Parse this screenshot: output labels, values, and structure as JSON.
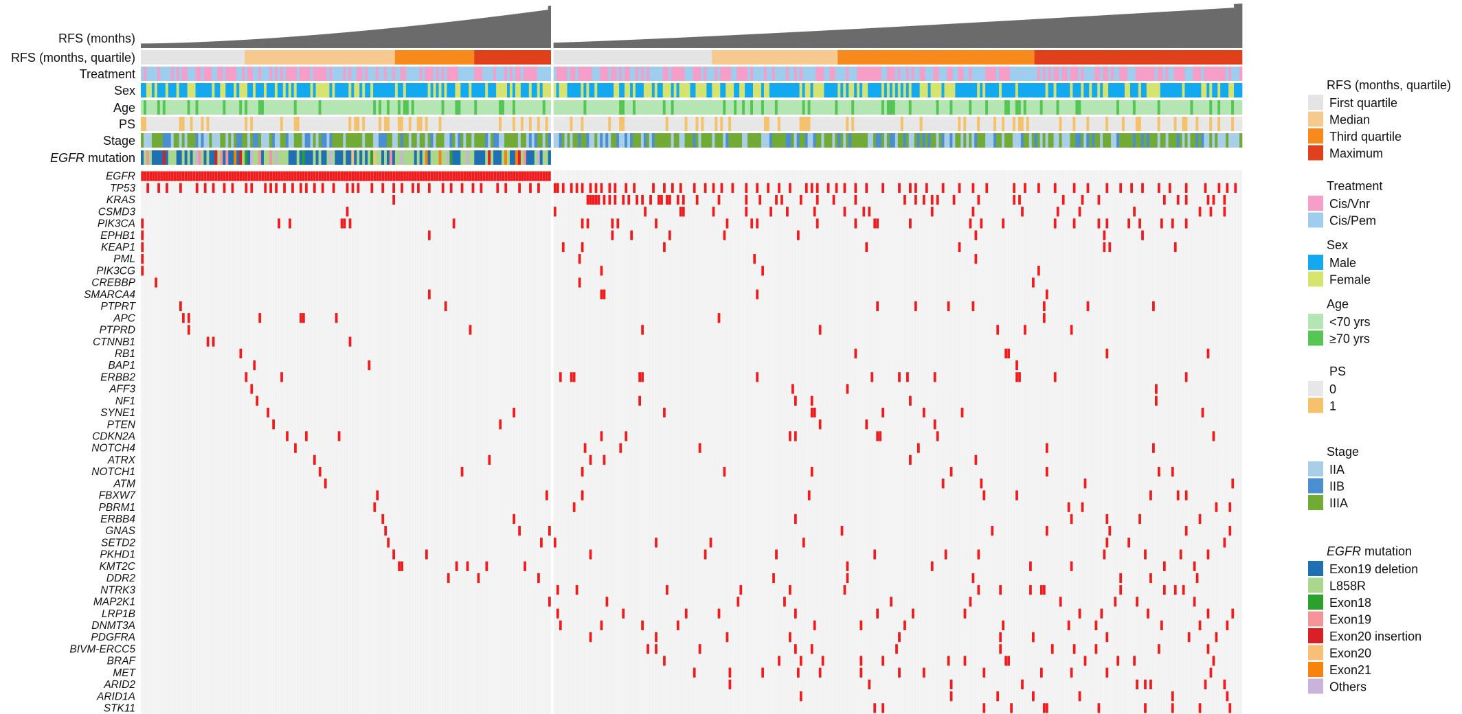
{
  "chart_data": {
    "type": "heatmap",
    "n_samples": 402,
    "n_egfr_group": 150,
    "tracks": [
      {
        "key": "rfs",
        "label": "RFS (months)",
        "italic_prefix": ""
      },
      {
        "key": "quartile",
        "label": "RFS (months, quartile)",
        "italic_prefix": ""
      },
      {
        "key": "treatment",
        "label": "Treatment",
        "italic_prefix": ""
      },
      {
        "key": "sex",
        "label": "Sex",
        "italic_prefix": ""
      },
      {
        "key": "age",
        "label": "Age",
        "italic_prefix": ""
      },
      {
        "key": "ps",
        "label": "PS",
        "italic_prefix": ""
      },
      {
        "key": "stage",
        "label": "Stage",
        "italic_prefix": ""
      },
      {
        "key": "egfr_mut",
        "label": " mutation",
        "italic_prefix": "EGFR"
      }
    ],
    "quartile_breaks": {
      "egfr_group": [
        38,
        93,
        122
      ],
      "wild_group": [
        58,
        104,
        176
      ]
    },
    "genes": [
      {
        "name": "EGFR",
        "cols": []
      },
      {
        "name": "TP53",
        "cols": [
          2,
          6,
          9,
          14,
          20,
          23,
          26,
          30,
          33,
          38,
          40,
          45,
          47,
          49,
          52,
          55,
          58,
          60,
          63,
          66,
          70,
          75,
          77,
          79,
          84,
          88,
          92,
          95,
          99,
          101,
          105,
          110,
          113,
          117,
          121,
          124,
          130,
          133,
          138,
          142,
          145,
          150,
          151,
          153,
          156,
          158,
          160,
          163,
          165,
          167,
          170,
          172,
          176,
          179,
          186,
          190,
          193,
          196,
          201,
          205,
          208,
          211,
          215,
          220,
          224,
          228,
          232,
          236,
          242,
          244,
          246,
          250,
          253,
          256,
          260,
          264,
          270,
          276,
          280,
          282,
          286,
          292,
          298,
          303,
          308,
          318,
          322,
          327,
          333,
          340,
          345,
          352,
          357,
          361,
          365,
          371,
          375,
          381,
          388,
          393,
          396,
          399
        ]
      },
      {
        "name": "KRAS",
        "cols": [
          92,
          162,
          163,
          164,
          165,
          166,
          168,
          170,
          172,
          175,
          177,
          180,
          182,
          185,
          188,
          189,
          191,
          192,
          195,
          197,
          202,
          210,
          220,
          225,
          231,
          233,
          240,
          246,
          252,
          260,
          278,
          282,
          285,
          288,
          290,
          296,
          305,
          318,
          320,
          336,
          343,
          349,
          373,
          378,
          381,
          389,
          391,
          395
        ]
      },
      {
        "name": "CSMD3",
        "cols": [
          75,
          150,
          183,
          196,
          197,
          208,
          220,
          229,
          235,
          245,
          256,
          263,
          265,
          288,
          303,
          321,
          334,
          342,
          362,
          386,
          390,
          395
        ]
      },
      {
        "name": "PIK3CA",
        "cols": [
          0,
          50,
          54,
          73,
          74,
          76,
          114,
          160,
          162,
          171,
          173,
          187,
          213,
          222,
          224,
          246,
          260,
          267,
          268,
          280,
          302,
          306,
          314,
          333,
          340,
          349,
          352,
          360,
          364,
          372,
          376,
          381
        ]
      },
      {
        "name": "EPHB1",
        "cols": [
          0,
          105,
          171,
          178,
          192,
          212,
          239,
          304,
          351,
          365
        ]
      },
      {
        "name": "KEAP1",
        "cols": [
          0,
          153,
          160,
          190,
          264,
          298,
          351,
          353,
          377
        ]
      },
      {
        "name": "PML",
        "cols": [
          0,
          159,
          223,
          304
        ]
      },
      {
        "name": "PIK3CG",
        "cols": [
          0,
          167,
          226,
          327
        ]
      },
      {
        "name": "CREBBP",
        "cols": [
          5,
          159,
          325
        ]
      },
      {
        "name": "SMARCA4",
        "cols": [
          105,
          167,
          168,
          224,
          330
        ]
      },
      {
        "name": "PTPRT",
        "cols": [
          14,
          111,
          268,
          282,
          294,
          303,
          329,
          345,
          369
        ]
      },
      {
        "name": "APC",
        "cols": [
          15,
          17,
          43,
          58,
          59,
          71,
          210,
          329
        ]
      },
      {
        "name": "PTPRD",
        "cols": [
          17,
          120,
          182,
          247,
          312,
          322,
          339
        ]
      },
      {
        "name": "CTNNB1",
        "cols": [
          24,
          26,
          76
        ]
      },
      {
        "name": "RB1",
        "cols": [
          36,
          260,
          315,
          316,
          352,
          389
        ]
      },
      {
        "name": "BAP1",
        "cols": [
          41,
          83,
          319
        ]
      },
      {
        "name": "ERBB2",
        "cols": [
          38,
          51,
          152,
          156,
          157,
          181,
          182,
          224,
          266,
          276,
          279,
          289,
          319,
          320,
          333,
          381
        ]
      },
      {
        "name": "AFF3",
        "cols": [
          40,
          237,
          257,
          370
        ]
      },
      {
        "name": "NF1",
        "cols": [
          42,
          181,
          238,
          244,
          280,
          370
        ]
      },
      {
        "name": "SYNE1",
        "cols": [
          46,
          136,
          190,
          244,
          245,
          270,
          285,
          299,
          387
        ]
      },
      {
        "name": "PTEN",
        "cols": [
          48,
          131,
          247,
          264,
          289
        ]
      },
      {
        "name": "CDKN2A",
        "cols": [
          53,
          60,
          72,
          167,
          176,
          236,
          238,
          268,
          269,
          290,
          391
        ]
      },
      {
        "name": "NOTCH4",
        "cols": [
          56,
          161,
          174,
          203,
          283,
          330,
          369
        ]
      },
      {
        "name": "ATRX",
        "cols": [
          63,
          127,
          163,
          168,
          280,
          304
        ]
      },
      {
        "name": "NOTCH1",
        "cols": [
          65,
          117,
          160,
          212,
          244,
          295,
          330,
          371,
          376
        ]
      },
      {
        "name": "ATM",
        "cols": [
          67,
          292,
          306,
          344,
          398
        ]
      },
      {
        "name": "FBXW7",
        "cols": [
          86,
          148,
          160,
          243,
          307,
          319,
          368,
          378,
          381
        ]
      },
      {
        "name": "PBRM1",
        "cols": [
          85,
          157,
          338,
          343,
          392,
          397
        ]
      },
      {
        "name": "ERBB4",
        "cols": [
          88,
          136,
          238,
          339,
          352,
          364,
          386
        ]
      },
      {
        "name": "GNAS",
        "cols": [
          89,
          138,
          149,
          255,
          310,
          330,
          353,
          381,
          397
        ]
      },
      {
        "name": "SETD2",
        "cols": [
          90,
          146,
          150,
          187,
          207,
          241,
          352,
          360,
          395
        ]
      },
      {
        "name": "PKHD1",
        "cols": [
          92,
          104,
          163,
          205,
          231,
          267,
          293,
          305,
          351,
          366,
          379,
          389
        ]
      },
      {
        "name": "KMT2C",
        "cols": [
          94,
          95,
          115,
          119,
          126,
          140,
          257,
          288,
          324,
          339,
          373,
          384
        ]
      },
      {
        "name": "DDR2",
        "cols": [
          112,
          123,
          145,
          230,
          257,
          303,
          357,
          368,
          385
        ]
      },
      {
        "name": "NTRK3",
        "cols": [
          151,
          158,
          191,
          218,
          236,
          256,
          305,
          313,
          324,
          328,
          329,
          357,
          373,
          377,
          380
        ]
      },
      {
        "name": "MAP2K1",
        "cols": [
          149,
          169,
          217,
          234,
          273,
          302,
          335,
          355,
          363,
          384
        ]
      },
      {
        "name": "LRP1B",
        "cols": [
          151,
          175,
          198,
          210,
          238,
          268,
          281,
          300,
          342,
          350,
          367,
          389,
          398
        ]
      },
      {
        "name": "DNMT3A",
        "cols": [
          152,
          167,
          182,
          195,
          245,
          262,
          278,
          314,
          338,
          348,
          372,
          386,
          396
        ]
      },
      {
        "name": "PDGFRA",
        "cols": [
          163,
          187,
          213,
          236,
          276,
          313,
          325,
          352,
          382,
          392
        ]
      },
      {
        "name": "BIVM-ERCC5",
        "cols": [
          184,
          187,
          203,
          238,
          244,
          275,
          313,
          332,
          340,
          348,
          371,
          389
        ]
      },
      {
        "name": "BRAF",
        "cols": [
          190,
          232,
          240,
          248,
          262,
          270,
          294,
          300,
          315,
          316,
          344,
          356,
          362,
          391
        ]
      },
      {
        "name": "MET",
        "cols": [
          201,
          214,
          226,
          239,
          247,
          262,
          276,
          285,
          307,
          328,
          339,
          352,
          390
        ]
      },
      {
        "name": "ARID2",
        "cols": [
          214,
          265,
          295,
          321,
          363,
          366,
          368,
          388,
          395
        ]
      },
      {
        "name": "ARID1A",
        "cols": [
          240,
          295,
          312,
          325,
          342,
          376,
          396
        ]
      },
      {
        "name": "STK11",
        "cols": [
          267,
          270,
          307,
          317,
          329,
          330,
          349,
          366,
          376,
          386,
          397
        ]
      }
    ]
  },
  "legend": {
    "groups": [
      {
        "title": "RFS (months, quartile)",
        "title_italic": "",
        "items": [
          {
            "label": "First quartile",
            "color": "#e4e4e4"
          },
          {
            "label": "Median",
            "color": "#f6c98e"
          },
          {
            "label": "Third quartile",
            "color": "#f7891d"
          },
          {
            "label": "Maximum",
            "color": "#e0401c"
          }
        ]
      },
      {
        "title": "Treatment",
        "title_italic": "",
        "items": [
          {
            "label": "Cis/Vnr",
            "color": "#f59ec8"
          },
          {
            "label": "Cis/Pem",
            "color": "#9fcdee"
          }
        ]
      },
      {
        "title": "Sex",
        "title_italic": "",
        "items": [
          {
            "label": "Male",
            "color": "#12a9f1"
          },
          {
            "label": "Female",
            "color": "#d6e46f"
          }
        ]
      },
      {
        "title": "Age",
        "title_italic": "",
        "items": [
          {
            "label": "<70 yrs",
            "color": "#b4e6b4"
          },
          {
            "label": "≥70 yrs",
            "color": "#55c653"
          }
        ]
      },
      {
        "title": "PS",
        "title_italic": "",
        "items": [
          {
            "label": "0",
            "color": "#e7e7e7"
          },
          {
            "label": "1",
            "color": "#f4c16c"
          }
        ]
      },
      {
        "title": "Stage",
        "title_italic": "",
        "items": [
          {
            "label": "IIA",
            "color": "#a9cfe8"
          },
          {
            "label": "IIB",
            "color": "#4b8fd1"
          },
          {
            "label": "IIIA",
            "color": "#72aa36"
          }
        ]
      },
      {
        "title": " mutation",
        "title_italic": "EGFR",
        "items": [
          {
            "label": "Exon19 deletion",
            "color": "#1f6fb3"
          },
          {
            "label": "L858R",
            "color": "#a9d88c"
          },
          {
            "label": "Exon18",
            "color": "#2ca02c"
          },
          {
            "label": "Exon19",
            "color": "#f4949a"
          },
          {
            "label": "Exon20 insertion",
            "color": "#da1f26"
          },
          {
            "label": "Exon20",
            "color": "#f9be78"
          },
          {
            "label": "Exon21",
            "color": "#f7820c"
          },
          {
            "label": "Others",
            "color": "#c9b3da"
          }
        ]
      }
    ]
  },
  "colors": {
    "mutation": "#ee1c1c",
    "cell_bg": "#f2f2f2",
    "rfs_bar": "#6b6b6b"
  }
}
